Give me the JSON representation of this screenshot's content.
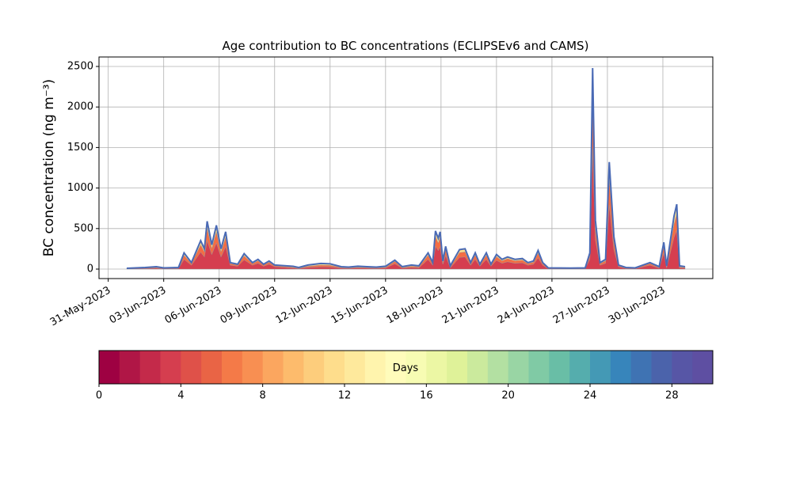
{
  "chart_data": {
    "type": "stacked_area",
    "title": "Age contribution to BC concentrations (ECLIPSEv6 and CAMS)",
    "y_label": "BC concentration (ng m⁻³)",
    "x": [
      1.0,
      2.0,
      2.6,
      3.0,
      3.8,
      4.1,
      4.5,
      5.0,
      5.2,
      5.35,
      5.6,
      5.85,
      6.1,
      6.35,
      6.6,
      7.0,
      7.35,
      7.8,
      8.1,
      8.4,
      8.7,
      9.0,
      10.0,
      10.3,
      10.8,
      11.5,
      12.0,
      12.6,
      13.0,
      13.5,
      14.0,
      14.5,
      15.0,
      15.5,
      15.9,
      16.4,
      16.8,
      17.3,
      17.55,
      17.7,
      17.85,
      17.95,
      18.1,
      18.25,
      18.5,
      19.0,
      19.3,
      19.6,
      19.85,
      20.1,
      20.45,
      20.7,
      21.0,
      21.3,
      21.6,
      22.0,
      22.4,
      22.7,
      23.0,
      23.25,
      23.5,
      23.8,
      25.0,
      25.8,
      26.05,
      26.2,
      26.35,
      26.6,
      26.9,
      27.1,
      27.35,
      27.6,
      28.0,
      28.5,
      29.3,
      29.8,
      30.05,
      30.2,
      30.6,
      30.75,
      30.9,
      31.2
    ],
    "series": [
      {
        "color": "#d53e4f",
        "values": [
          4,
          8,
          12,
          6,
          8,
          120,
          48,
          210,
          150,
          354,
          180,
          324,
          150,
          276,
          48,
          36,
          114,
          48,
          72,
          36,
          60,
          30,
          14,
          8,
          20,
          28,
          26,
          12,
          10,
          14,
          12,
          10,
          14,
          66,
          12,
          20,
          16,
          120,
          48,
          282,
          228,
          276,
          60,
          168,
          16,
          144,
          150,
          48,
          120,
          36,
          120,
          36,
          108,
          72,
          90,
          72,
          78,
          48,
          60,
          138,
          48,
          6,
          5,
          6,
          120,
          1488,
          360,
          48,
          72,
          792,
          240,
          30,
          8,
          6,
          48,
          12,
          198,
          16,
          390,
          480,
          16,
          12
        ]
      },
      {
        "color": "#f46d43",
        "values": [
          3,
          6,
          9,
          5,
          6,
          50,
          20,
          88,
          62,
          148,
          75,
          135,
          62,
          115,
          20,
          15,
          48,
          20,
          30,
          15,
          25,
          12,
          10,
          6,
          15,
          21,
          20,
          9,
          8,
          10,
          9,
          8,
          10,
          28,
          9,
          15,
          12,
          50,
          20,
          118,
          95,
          115,
          25,
          70,
          12,
          60,
          62,
          20,
          50,
          15,
          50,
          15,
          45,
          30,
          38,
          30,
          32,
          20,
          25,
          58,
          20,
          5,
          4,
          5,
          50,
          620,
          150,
          20,
          30,
          330,
          100,
          12,
          6,
          5,
          20,
          9,
          82,
          12,
          162,
          200,
          12,
          9
        ]
      },
      {
        "color": "#fee08b",
        "values": [
          3,
          6,
          9,
          4,
          6,
          30,
          12,
          52,
          38,
          88,
          45,
          81,
          38,
          69,
          12,
          9,
          28,
          12,
          18,
          9,
          15,
          8,
          11,
          6,
          15,
          21,
          19,
          9,
          7,
          11,
          9,
          7,
          11,
          16,
          9,
          15,
          12,
          30,
          12,
          70,
          57,
          69,
          15,
          42,
          12,
          36,
          38,
          12,
          30,
          9,
          30,
          9,
          27,
          18,
          22,
          18,
          20,
          12,
          15,
          34,
          12,
          4,
          3,
          4,
          30,
          372,
          90,
          12,
          18,
          198,
          60,
          8,
          6,
          4,
          12,
          9,
          50,
          12,
          98,
          120,
          12,
          9
        ]
      }
    ],
    "outline_color": "#4a6ab5",
    "xlim": [
      -0.5,
      32.7
    ],
    "xticks": [
      {
        "value": 0,
        "label": "31-May-2023"
      },
      {
        "value": 3,
        "label": "03-Jun-2023"
      },
      {
        "value": 6,
        "label": "06-Jun-2023"
      },
      {
        "value": 9,
        "label": "09-Jun-2023"
      },
      {
        "value": 12,
        "label": "12-Jun-2023"
      },
      {
        "value": 15,
        "label": "15-Jun-2023"
      },
      {
        "value": 18,
        "label": "18-Jun-2023"
      },
      {
        "value": 21,
        "label": "21-Jun-2023"
      },
      {
        "value": 24,
        "label": "24-Jun-2023"
      },
      {
        "value": 27,
        "label": "27-Jun-2023"
      },
      {
        "value": 30,
        "label": "30-Jun-2023"
      }
    ],
    "ylim": [
      -117,
      2617
    ],
    "yticks": [
      0,
      500,
      1000,
      1500,
      2000,
      2500
    ],
    "grid": true,
    "colorbar": {
      "label": "Days",
      "lim": [
        0,
        30
      ],
      "ticks": [
        0,
        4,
        8,
        12,
        16,
        20,
        24,
        28
      ],
      "colors": [
        "#9e0142",
        "#b01646",
        "#c42a4a",
        "#d53e4f",
        "#df5149",
        "#e96445",
        "#f47a48",
        "#f88f52",
        "#fba65f",
        "#fdbb6c",
        "#fdcd7c",
        "#fedd8c",
        "#fee99c",
        "#fff4ad",
        "#fffcbb",
        "#f7fcb3",
        "#ecf7a4",
        "#dff299",
        "#cbea9d",
        "#b3e0a2",
        "#99d5a4",
        "#80caa5",
        "#69bea6",
        "#55adad",
        "#4499b5",
        "#3785bb",
        "#3f73b3",
        "#4b63ab",
        "#5756a6",
        "#5e4fa2"
      ]
    }
  }
}
